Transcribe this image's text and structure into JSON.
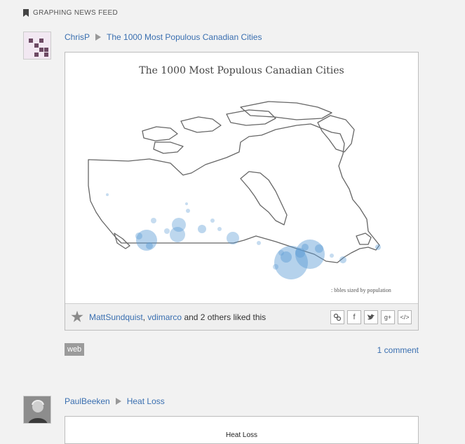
{
  "section": {
    "title": "GRAPHING NEWS FEED"
  },
  "posts": [
    {
      "author": "ChrisP",
      "title": "The 1000 Most Populous Canadian Cities",
      "plot_title": "The 1000 Most Populous Canadian Cities",
      "plot_note": "bbles sized by population :",
      "likes": {
        "user1": "MattSundquist",
        "separator": ",",
        "user2": "vdimarco",
        "rest": "and 2 others liked this"
      },
      "share_icons": [
        "link-icon",
        "facebook-icon",
        "twitter-icon",
        "google-plus-icon",
        "embed-icon"
      ],
      "share_labels": {
        "facebook": "f",
        "google": "g+",
        "embed": "</>"
      },
      "tag": "web",
      "comments": "1 comment",
      "bubble_color": "#5b9bd5"
    },
    {
      "author": "PaulBeeken",
      "title": "Heat Loss",
      "plot_title": "Heat Loss"
    }
  ]
}
